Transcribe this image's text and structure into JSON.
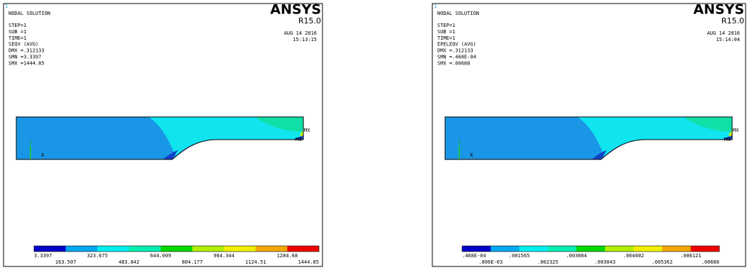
{
  "panels": [
    {
      "id_label": "1",
      "title": "NODAL SOLUTION",
      "info": [
        "STEP=1",
        "SUB =1",
        "TIME=1",
        "SEQV     (AVG)",
        "DMX =.312133",
        "SMN =3.3397",
        "SMX =1444.85"
      ],
      "logo": "ANSYS",
      "version": "R15.0",
      "date": "AUG 14 2016",
      "time": "15:13:15",
      "triad": [
        "Y",
        "X"
      ],
      "markers": [
        "MX",
        "MN"
      ],
      "legend": [
        "3.3397",
        "163.507",
        "323.675",
        "483.842",
        "644.009",
        "804.177",
        "964.344",
        "1124.51",
        "1284.68",
        "1444.85"
      ]
    },
    {
      "id_label": "1",
      "title": "NODAL SOLUTION",
      "info": [
        "STEP=1",
        "SUB =1",
        "TIME=1",
        "EPELEQV  (AVG)",
        "DMX =.312133",
        "SMN =.468E-04",
        "SMX =.00688"
      ],
      "logo": "ANSYS",
      "version": "R15.0",
      "date": "AUG 14 2016",
      "time": "15:14:04",
      "triad": [
        "Y",
        "X"
      ],
      "markers": [
        "MX",
        "MN"
      ],
      "legend": [
        ".468E-04",
        ".806E-03",
        ".001565",
        ".002325",
        ".003084",
        ".003843",
        ".004602",
        ".005362",
        ".006121",
        ".00688"
      ]
    }
  ]
}
